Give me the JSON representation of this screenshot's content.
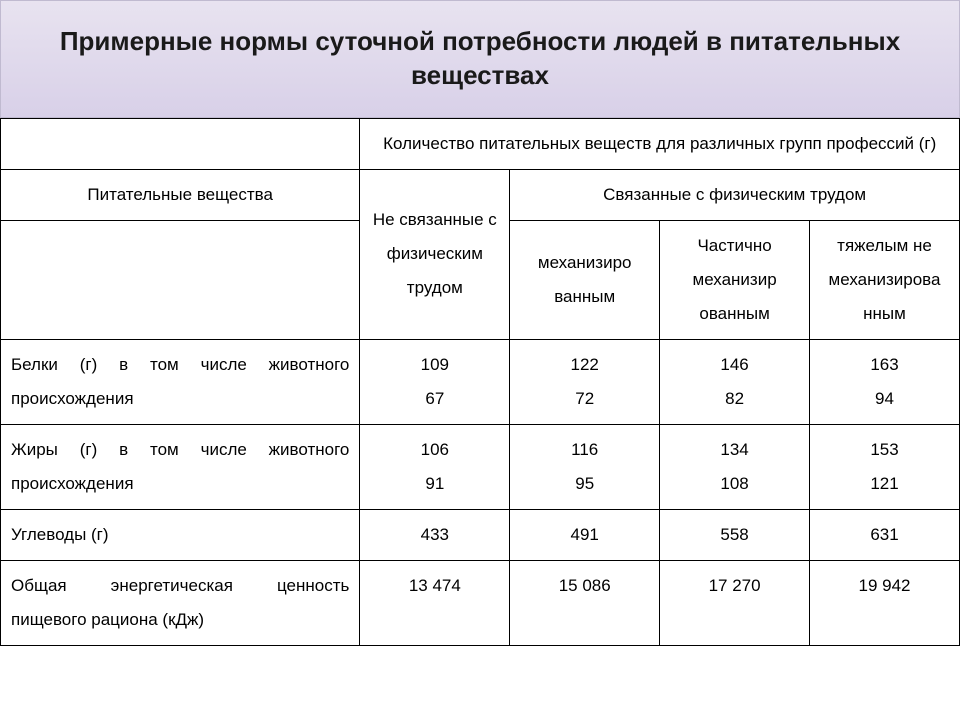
{
  "title": "Примерные нормы суточной потребности людей в питательных веществах",
  "header": {
    "main": "Количество питательных веществ для различных групп профессий (г)",
    "col_nutrients": "Питательные вещества",
    "col_no_physical": "Не связанные с физическим трудом",
    "col_physical": "Связанные с физическим трудом",
    "sub_mechanized": "механизиро ванным",
    "sub_partial": "Частично механизир ованным",
    "sub_heavy": "тяжелым не механизирова нным"
  },
  "rows": {
    "proteins": {
      "label": "Белки (г) в том числе животного происхождения",
      "v1a": "109",
      "v1b": "67",
      "v2a": "122",
      "v2b": "72",
      "v3a": "146",
      "v3b": "82",
      "v4a": "163",
      "v4b": "94"
    },
    "fats": {
      "label": "Жиры (г) в том числе животного происхождения",
      "v1a": "106",
      "v1b": "91",
      "v2a": "116",
      "v2b": "95",
      "v3a": "134",
      "v3b": "108",
      "v4a": "153",
      "v4b": "121"
    },
    "carbs": {
      "label": "Углеводы (г)",
      "v1": "433",
      "v2": "491",
      "v3": "558",
      "v4": "631"
    },
    "energy": {
      "label": "Общая энергетическая ценность пищевого рациона (кДж)",
      "v1": "13 474",
      "v2": "15 086",
      "v3": "17 270",
      "v4": "19 942"
    }
  },
  "style": {
    "title_bg_top": "#e8e3f0",
    "title_bg_bottom": "#d8d0e8",
    "title_fontsize": 26,
    "body_fontsize": 17,
    "border_color": "#000000",
    "text_color": "#000000"
  }
}
